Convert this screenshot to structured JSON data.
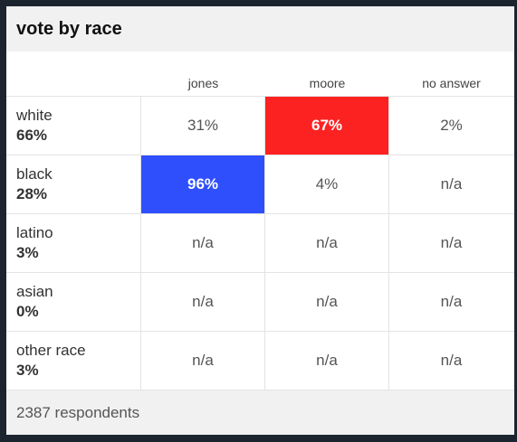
{
  "header": {
    "title": "vote by race"
  },
  "chart_data": {
    "type": "table",
    "title": "vote by race",
    "columns": [
      "jones",
      "moore",
      "no answer"
    ],
    "rows": [
      {
        "race": "white",
        "share": "66%",
        "values": [
          "31%",
          "67%",
          "2%"
        ],
        "winner": 1
      },
      {
        "race": "black",
        "share": "28%",
        "values": [
          "96%",
          "4%",
          "n/a"
        ],
        "winner": 0
      },
      {
        "race": "latino",
        "share": "3%",
        "values": [
          "n/a",
          "n/a",
          "n/a"
        ],
        "winner": null
      },
      {
        "race": "asian",
        "share": "0%",
        "values": [
          "n/a",
          "n/a",
          "n/a"
        ],
        "winner": null
      },
      {
        "race": "other race",
        "share": "3%",
        "values": [
          "n/a",
          "n/a",
          "n/a"
        ],
        "winner": null
      }
    ],
    "column_colors": [
      "#2f4ffd",
      "#fd2222",
      "#ffffff"
    ]
  },
  "footer": {
    "respondents": "2387 respondents"
  }
}
